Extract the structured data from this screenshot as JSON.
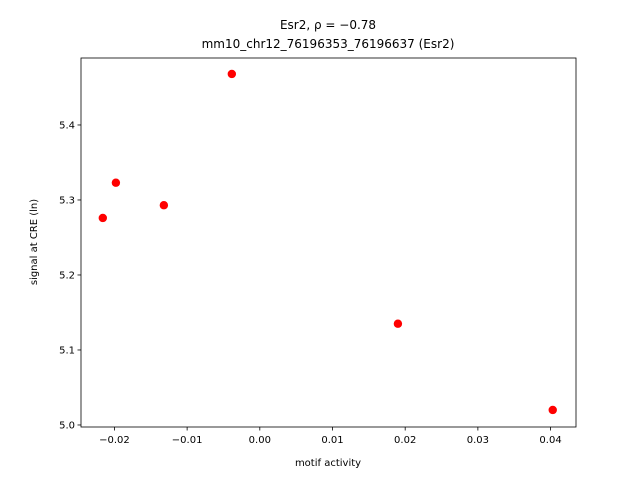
{
  "chart_data": {
    "type": "scatter",
    "title": "Esr2, ρ = −0.78",
    "subtitle": "mm10_chr12_76196353_76196637 (Esr2)",
    "x_label": "motif activity",
    "y_label": "signal at CRE (ln)",
    "color": "#ff0000",
    "x": [
      -0.0216,
      -0.0198,
      -0.0132,
      -0.00385,
      0.019,
      0.0403
    ],
    "values": [
      5.276,
      5.323,
      5.293,
      5.468,
      5.135,
      5.02
    ],
    "xlim": [
      -0.0246,
      0.0435
    ],
    "ylim": [
      4.9973,
      5.4893
    ],
    "xticks": [
      {
        "value": -0.02,
        "label": "−0.02"
      },
      {
        "value": -0.01,
        "label": "−0.01"
      },
      {
        "value": 0,
        "label": "0.00"
      },
      0.01,
      0.02,
      0.03,
      0.04
    ],
    "yticks": [
      {
        "value": 5.0,
        "label": "5.0"
      },
      5.1,
      5.2,
      5.3,
      5.4
    ]
  }
}
